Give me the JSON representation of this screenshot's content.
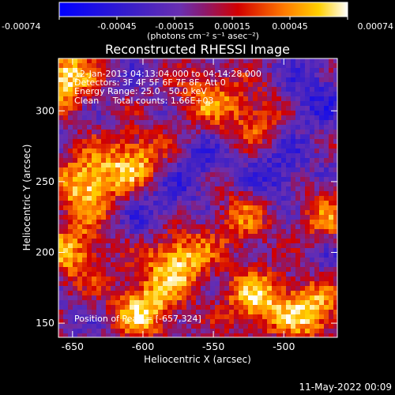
{
  "chart_data": {
    "type": "heatmap",
    "title": "Reconstructed RHESSI Image",
    "info_lines": [
      "12-Jan-2013 04:13:04.000 to 04:14:28.000",
      "Detectors: 3F 4F 5F 6F 7F 8F, Att 0",
      "Energy Range: 25.0 - 50.0 keV",
      "Clean     Total counts: 1.66E+03"
    ],
    "peak_label": "Position of Peak = [-657,324]",
    "xlabel": "Heliocentric X (arcsec)",
    "ylabel": "Heliocentric Y (arcsec)",
    "xlim": [
      -660,
      -462
    ],
    "ylim": [
      140,
      337
    ],
    "x_ticks": [
      "-650",
      "-600",
      "-550",
      "-500"
    ],
    "x_tick_values": [
      -650,
      -600,
      -550,
      -500
    ],
    "y_ticks": [
      "150",
      "200",
      "250",
      "300"
    ],
    "y_tick_values": [
      150,
      200,
      250,
      300
    ],
    "colorbar": {
      "unit": "(photons cm⁻² s⁻¹ asec⁻²)",
      "ticks": [
        "-0.00074",
        "-0.00045",
        "-0.00015",
        "0.00015",
        "0.00045",
        "0.00074"
      ],
      "min": -0.00074,
      "max": 0.00074
    },
    "bright_regions_arcsec": [
      {
        "x": -657,
        "y": 324,
        "level": 1.0
      },
      {
        "x": -640,
        "y": 248,
        "level": 0.95
      },
      {
        "x": -605,
        "y": 265,
        "level": 0.8
      },
      {
        "x": -575,
        "y": 195,
        "level": 0.95
      },
      {
        "x": -600,
        "y": 160,
        "level": 0.9
      },
      {
        "x": -520,
        "y": 165,
        "level": 0.85
      },
      {
        "x": -480,
        "y": 160,
        "level": 0.9
      },
      {
        "x": -650,
        "y": 200,
        "level": 0.75
      },
      {
        "x": -555,
        "y": 310,
        "level": 0.6
      },
      {
        "x": -520,
        "y": 295,
        "level": 0.55
      },
      {
        "x": -530,
        "y": 225,
        "level": 0.55
      },
      {
        "x": -470,
        "y": 225,
        "level": 0.6
      }
    ],
    "dark_regions_arcsec": [
      {
        "x": -590,
        "y": 230,
        "level": -0.55
      },
      {
        "x": -505,
        "y": 255,
        "level": -0.65
      },
      {
        "x": -480,
        "y": 310,
        "level": -0.55
      },
      {
        "x": -560,
        "y": 260,
        "level": -0.45
      },
      {
        "x": -470,
        "y": 195,
        "level": -0.35
      }
    ]
  },
  "footer": {
    "date": "11-May-2022 00:09"
  }
}
